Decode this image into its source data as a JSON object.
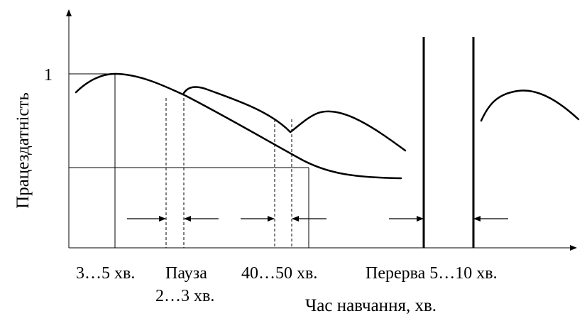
{
  "axis": {
    "y_label": "Працездатність",
    "x_label": "Час навчання, хв.",
    "y_tick_1": "1"
  },
  "labels": {
    "first_interval": "3…5 хв.",
    "pause": "Пауза",
    "pause_duration": "2…3 хв.",
    "second_interval": "40…50 хв.",
    "break": "Перерва 5…10 хв."
  }
}
